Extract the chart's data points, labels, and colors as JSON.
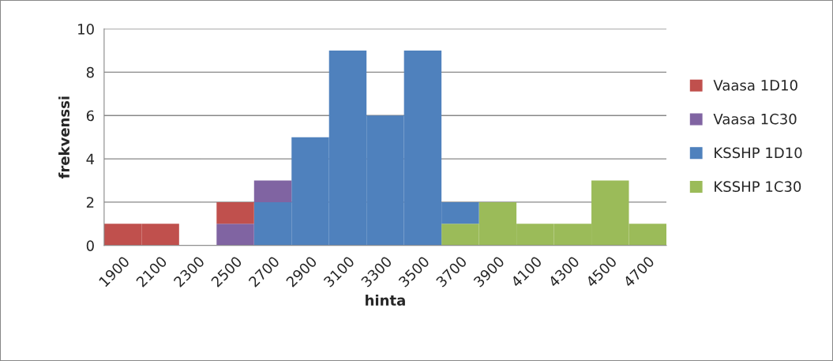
{
  "chart_data": {
    "type": "bar",
    "stacked": true,
    "xlabel": "hinta",
    "ylabel": "frekvenssi",
    "categories": [
      "1900",
      "2100",
      "2300",
      "2500",
      "2700",
      "2900",
      "3100",
      "3300",
      "3500",
      "3700",
      "3900",
      "4100",
      "4300",
      "4500",
      "4700"
    ],
    "series": [
      {
        "name": "KSSHP 1C30",
        "color": "#9bbb59",
        "values": [
          0,
          0,
          0,
          0,
          0,
          0,
          0,
          0,
          0,
          1,
          2,
          1,
          1,
          3,
          1
        ]
      },
      {
        "name": "KSSHP 1D10",
        "color": "#4f81bd",
        "values": [
          0,
          0,
          0,
          0,
          2,
          5,
          9,
          6,
          9,
          1,
          0,
          0,
          0,
          0,
          0
        ]
      },
      {
        "name": "Vaasa 1C30",
        "color": "#8064a2",
        "values": [
          0,
          0,
          0,
          1,
          1,
          0,
          0,
          0,
          0,
          0,
          0,
          0,
          0,
          0,
          0
        ]
      },
      {
        "name": "Vaasa 1D10",
        "color": "#c0504d",
        "values": [
          1,
          1,
          0,
          1,
          0,
          0,
          0,
          0,
          0,
          0,
          0,
          0,
          0,
          0,
          0
        ]
      }
    ],
    "ylim": [
      0,
      10
    ],
    "yticks": [
      0,
      2,
      4,
      6,
      8,
      10
    ],
    "grid": "y",
    "legend": "right"
  }
}
